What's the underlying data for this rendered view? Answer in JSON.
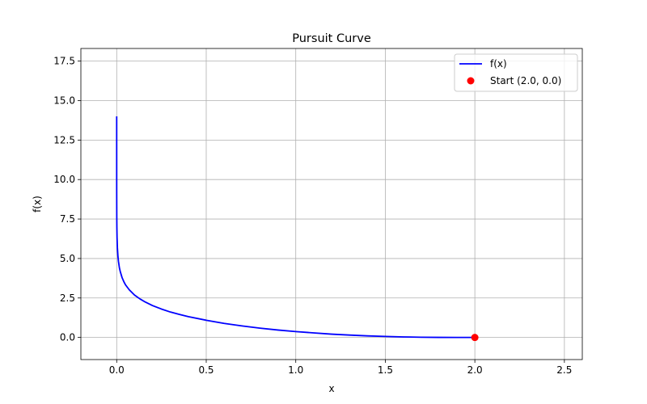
{
  "chart_data": {
    "type": "line",
    "title": "Pursuit Curve",
    "xlabel": "x",
    "ylabel": "f(x)",
    "xlim": [
      -0.2,
      2.6
    ],
    "ylim": [
      -1.4,
      18.3
    ],
    "xticks": [
      0.0,
      0.5,
      1.0,
      1.5,
      2.0,
      2.5
    ],
    "xtick_labels": [
      "0.0",
      "0.5",
      "1.0",
      "1.5",
      "2.0",
      "2.5"
    ],
    "yticks": [
      0.0,
      2.5,
      5.0,
      7.5,
      10.0,
      12.5,
      15.0,
      17.5
    ],
    "ytick_labels": [
      "0.0",
      "2.5",
      "5.0",
      "7.5",
      "10.0",
      "12.5",
      "15.0",
      "17.5"
    ],
    "grid": true,
    "legend_position": "top-right",
    "series": [
      {
        "name": "f(x)",
        "type": "line",
        "color": "#0000ff",
        "x": [
          0.0,
          0.0001,
          0.0005,
          0.001,
          0.002,
          0.004,
          0.007,
          0.01,
          0.015,
          0.02,
          0.03,
          0.04,
          0.05,
          0.07,
          0.1,
          0.13,
          0.16,
          0.2,
          0.25,
          0.3,
          0.35,
          0.4,
          0.5,
          0.6,
          0.7,
          0.8,
          0.9,
          1.0,
          1.1,
          1.2,
          1.3,
          1.4,
          1.5,
          1.6,
          1.7,
          1.8,
          1.9,
          1.95,
          2.0
        ],
        "y": [
          14.0,
          9.3,
          7.65,
          6.99,
          6.33,
          5.67,
          5.13,
          4.81,
          4.42,
          4.17,
          3.79,
          3.53,
          3.32,
          3.02,
          2.68,
          2.44,
          2.24,
          2.02,
          1.8,
          1.61,
          1.46,
          1.32,
          1.09,
          0.89,
          0.73,
          0.59,
          0.47,
          0.37,
          0.29,
          0.21,
          0.15,
          0.1,
          0.063,
          0.034,
          0.015,
          0.0043,
          0.0004,
          0.0,
          0.0
        ]
      },
      {
        "name": "Start (2.0, 0.0)",
        "type": "scatter",
        "color": "#ff0000",
        "x": [
          2.0
        ],
        "y": [
          0.0
        ]
      }
    ]
  }
}
